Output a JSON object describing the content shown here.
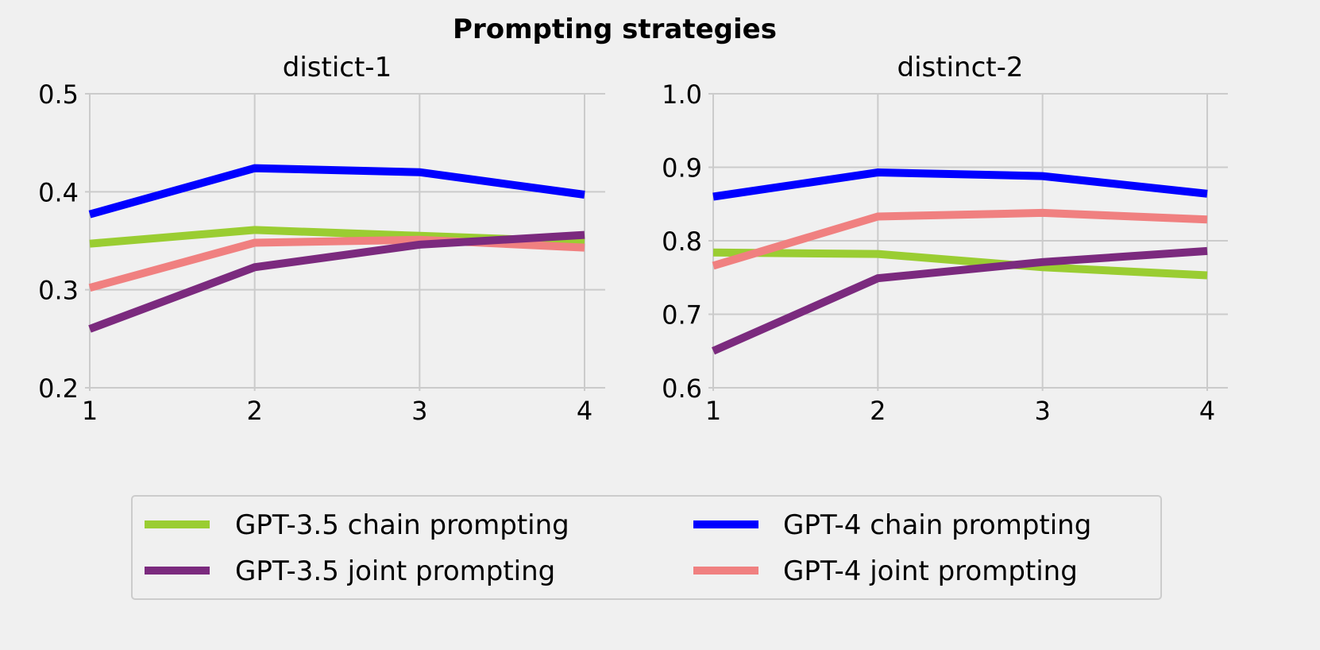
{
  "chart_data": {
    "type": "line",
    "title": "Prompting strategies",
    "legend": {
      "placement": "bottom-center",
      "columns": 2,
      "entries": [
        "GPT-3.5 chain prompting",
        "GPT-3.5 joint prompting",
        "GPT-4 chain prompting",
        "GPT-4 joint prompting"
      ]
    },
    "colors": {
      "GPT-3.5 chain prompting": "#9acd32",
      "GPT-3.5 joint prompting": "#7b2a7e",
      "GPT-4 chain prompting": "#0000ff",
      "GPT-4 joint prompting": "#f08080",
      "background": "#f0f0f0",
      "grid": "#cbcbcb"
    },
    "grid": true,
    "panels": [
      {
        "title": "distict-1",
        "x": [
          1,
          2,
          3,
          4
        ],
        "xticks": [
          "1",
          "2",
          "3",
          "4"
        ],
        "ylim": [
          0.2,
          0.5
        ],
        "yticks": [
          "0.2",
          "0.3",
          "0.4",
          "0.5"
        ],
        "series": [
          {
            "name": "GPT-3.5 chain prompting",
            "values": [
              0.347,
              0.361,
              0.355,
              0.349
            ]
          },
          {
            "name": "GPT-4 chain prompting",
            "values": [
              0.377,
              0.424,
              0.42,
              0.397
            ]
          },
          {
            "name": "GPT-4 joint prompting",
            "values": [
              0.302,
              0.348,
              0.351,
              0.343
            ]
          },
          {
            "name": "GPT-3.5 joint prompting",
            "values": [
              0.26,
              0.323,
              0.346,
              0.356
            ]
          }
        ]
      },
      {
        "title": "distinct-2",
        "x": [
          1,
          2,
          3,
          4
        ],
        "xticks": [
          "1",
          "2",
          "3",
          "4"
        ],
        "ylim": [
          0.6,
          1.0
        ],
        "yticks": [
          "0.6",
          "0.7",
          "0.8",
          "0.9",
          "1.0"
        ],
        "series": [
          {
            "name": "GPT-3.5 chain prompting",
            "values": [
              0.784,
              0.782,
              0.764,
              0.753
            ]
          },
          {
            "name": "GPT-4 chain prompting",
            "values": [
              0.86,
              0.893,
              0.888,
              0.864
            ]
          },
          {
            "name": "GPT-4 joint prompting",
            "values": [
              0.766,
              0.833,
              0.838,
              0.829
            ]
          },
          {
            "name": "GPT-3.5 joint prompting",
            "values": [
              0.65,
              0.749,
              0.771,
              0.786
            ]
          }
        ]
      }
    ]
  }
}
